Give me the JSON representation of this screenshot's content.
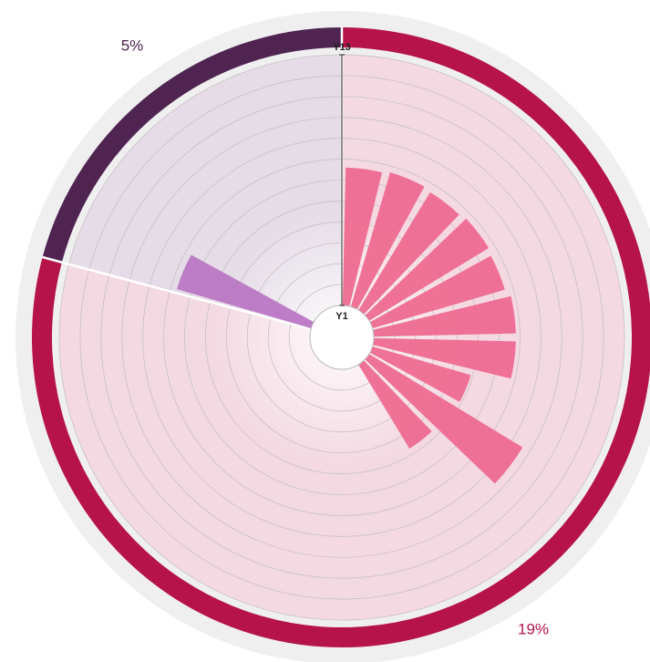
{
  "chart_data": [
    {
      "type": "pie",
      "values": [
        19,
        5
      ],
      "value_labels": [
        "19%",
        "5%"
      ],
      "colors": [
        "#b5134a",
        "#4f2451"
      ],
      "fills": [
        "#f4d9e2",
        "#e5dce7"
      ]
    },
    {
      "type": "radial_bar",
      "ylim": [
        1,
        13
      ],
      "yticks": [
        {
          "value": 1,
          "label": "Y1"
        },
        {
          "value": 13,
          "label": "Y13"
        }
      ],
      "series": [
        {
          "color": "#ee6a91",
          "values": [
            7.6,
            7.7,
            7.6,
            7.7,
            7.6,
            7.8,
            7.8,
            5.9,
            9.6,
            5.7,
            null,
            null,
            null,
            null,
            null,
            null,
            null,
            null,
            null
          ]
        },
        {
          "color": "#bb77c4",
          "values": [
            7.7,
            null,
            null,
            null,
            null
          ]
        }
      ]
    }
  ]
}
